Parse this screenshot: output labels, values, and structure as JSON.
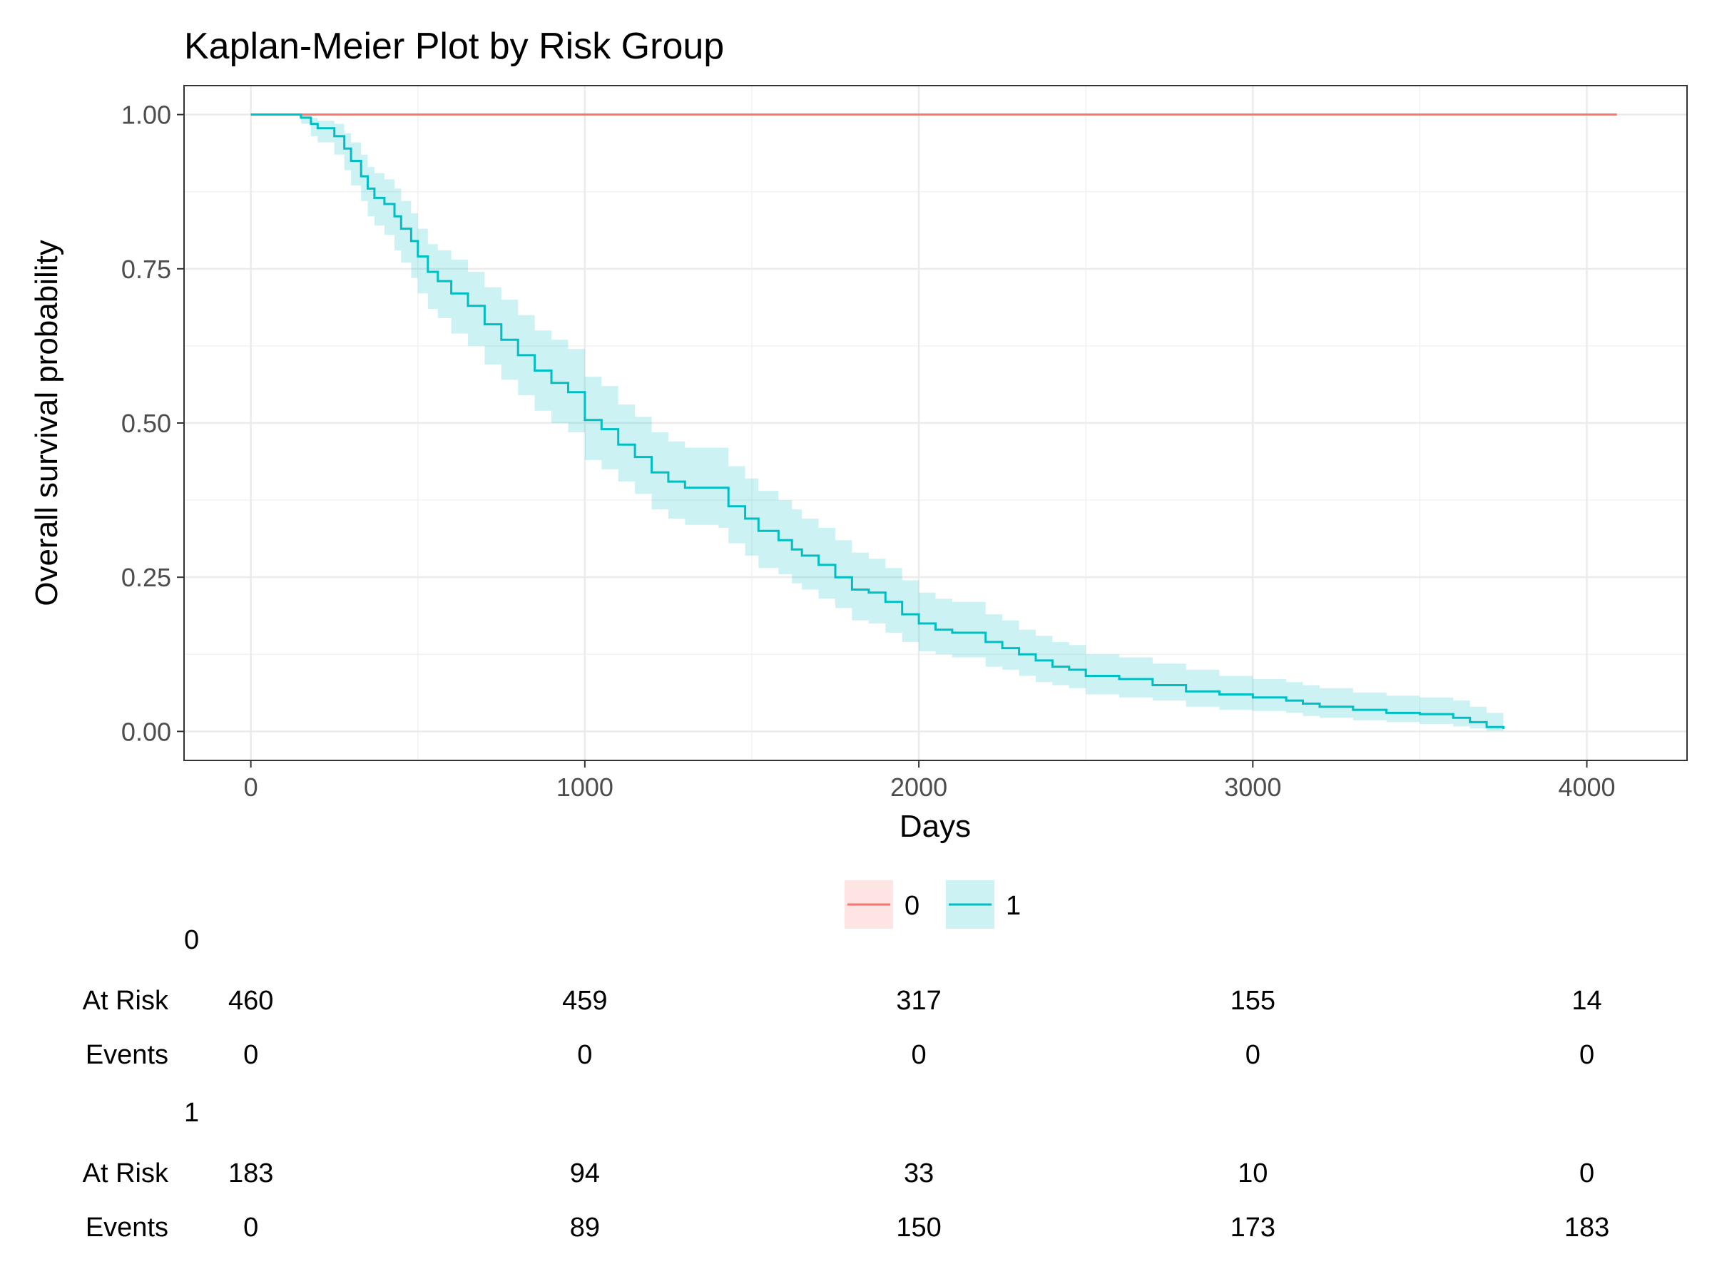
{
  "chart_data": {
    "type": "line",
    "title": "Kaplan-Meier Plot by Risk Group",
    "xlabel": "Days",
    "ylabel": "Overall survival probability",
    "xlim": [
      -200,
      4300
    ],
    "ylim": [
      -0.047,
      1.047
    ],
    "x_ticks": [
      0,
      1000,
      2000,
      3000,
      4000
    ],
    "y_ticks": [
      0,
      0.25,
      0.5,
      0.75,
      1
    ],
    "y_tick_labels": [
      "0.00",
      "0.25",
      "0.50",
      "0.75",
      "1.00"
    ],
    "grid": true,
    "legend_position": "bottom",
    "series": [
      {
        "name": "0",
        "color": "#F8766D",
        "x": [
          0,
          4090
        ],
        "y": [
          1.0,
          1.0
        ],
        "ci_lower": [
          1.0,
          1.0
        ],
        "ci_upper": [
          1.0,
          1.0
        ]
      },
      {
        "name": "1",
        "color": "#00BFC4",
        "x": [
          0,
          150,
          180,
          200,
          250,
          280,
          300,
          330,
          350,
          370,
          400,
          430,
          450,
          480,
          500,
          530,
          560,
          600,
          650,
          700,
          750,
          800,
          850,
          900,
          950,
          1000,
          1050,
          1100,
          1150,
          1200,
          1250,
          1300,
          1400,
          1430,
          1480,
          1520,
          1580,
          1620,
          1650,
          1700,
          1750,
          1800,
          1850,
          1900,
          1950,
          2000,
          2050,
          2100,
          2200,
          2250,
          2300,
          2350,
          2400,
          2450,
          2500,
          2600,
          2700,
          2800,
          2900,
          3000,
          3100,
          3150,
          3200,
          3300,
          3400,
          3500,
          3600,
          3650,
          3700,
          3750
        ],
        "y": [
          1.0,
          0.995,
          0.985,
          0.978,
          0.965,
          0.945,
          0.925,
          0.9,
          0.88,
          0.865,
          0.855,
          0.835,
          0.815,
          0.795,
          0.77,
          0.745,
          0.73,
          0.71,
          0.69,
          0.66,
          0.635,
          0.61,
          0.585,
          0.565,
          0.55,
          0.505,
          0.49,
          0.465,
          0.445,
          0.42,
          0.405,
          0.395,
          0.395,
          0.365,
          0.345,
          0.325,
          0.31,
          0.295,
          0.285,
          0.27,
          0.25,
          0.23,
          0.225,
          0.21,
          0.19,
          0.175,
          0.165,
          0.16,
          0.145,
          0.135,
          0.125,
          0.115,
          0.105,
          0.1,
          0.09,
          0.085,
          0.075,
          0.065,
          0.06,
          0.055,
          0.05,
          0.045,
          0.04,
          0.035,
          0.03,
          0.028,
          0.022,
          0.015,
          0.007,
          0.004
        ],
        "ci_lower": [
          1.0,
          0.985,
          0.965,
          0.955,
          0.935,
          0.91,
          0.885,
          0.86,
          0.835,
          0.82,
          0.805,
          0.78,
          0.76,
          0.735,
          0.71,
          0.685,
          0.67,
          0.645,
          0.625,
          0.595,
          0.57,
          0.545,
          0.52,
          0.5,
          0.485,
          0.44,
          0.425,
          0.405,
          0.385,
          0.36,
          0.345,
          0.335,
          0.33,
          0.305,
          0.285,
          0.265,
          0.255,
          0.24,
          0.23,
          0.215,
          0.2,
          0.18,
          0.175,
          0.16,
          0.145,
          0.13,
          0.125,
          0.12,
          0.105,
          0.1,
          0.09,
          0.08,
          0.075,
          0.07,
          0.06,
          0.055,
          0.05,
          0.04,
          0.035,
          0.033,
          0.03,
          0.025,
          0.022,
          0.018,
          0.015,
          0.012,
          0.008,
          0.005,
          0.001,
          0.0
        ],
        "ci_upper": [
          1.0,
          1.0,
          0.995,
          0.99,
          0.985,
          0.97,
          0.955,
          0.935,
          0.915,
          0.905,
          0.895,
          0.88,
          0.86,
          0.84,
          0.815,
          0.79,
          0.78,
          0.765,
          0.745,
          0.72,
          0.7,
          0.675,
          0.65,
          0.635,
          0.62,
          0.575,
          0.56,
          0.53,
          0.51,
          0.485,
          0.47,
          0.46,
          0.46,
          0.43,
          0.41,
          0.39,
          0.375,
          0.36,
          0.345,
          0.33,
          0.31,
          0.29,
          0.28,
          0.265,
          0.245,
          0.225,
          0.215,
          0.21,
          0.19,
          0.18,
          0.165,
          0.155,
          0.145,
          0.14,
          0.125,
          0.12,
          0.11,
          0.1,
          0.09,
          0.085,
          0.08,
          0.075,
          0.07,
          0.063,
          0.058,
          0.055,
          0.05,
          0.04,
          0.03,
          0.02
        ]
      }
    ],
    "risk_table": {
      "time_points": [
        0,
        1000,
        2000,
        3000,
        4000
      ],
      "row_labels": {
        "at_risk": "At Risk",
        "events": "Events"
      },
      "groups": [
        {
          "name": "0",
          "at_risk": [
            460,
            459,
            317,
            155,
            14
          ],
          "events": [
            0,
            0,
            0,
            0,
            0
          ]
        },
        {
          "name": "1",
          "at_risk": [
            183,
            94,
            33,
            10,
            0
          ],
          "events": [
            0,
            89,
            150,
            173,
            183
          ]
        }
      ]
    }
  }
}
